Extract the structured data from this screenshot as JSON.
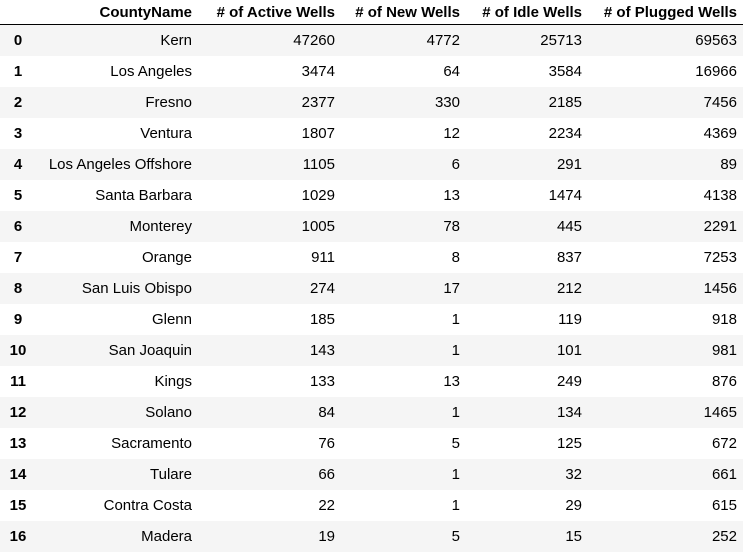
{
  "table": {
    "index_header": "",
    "columns": [
      "CountyName",
      "# of Active Wells",
      "# of New Wells",
      "# of Idle Wells",
      "# of Plugged Wells"
    ],
    "rows": [
      {
        "index": "0",
        "county": "Kern",
        "active": "47260",
        "new": "4772",
        "idle": "25713",
        "plugged": "69563"
      },
      {
        "index": "1",
        "county": "Los Angeles",
        "active": "3474",
        "new": "64",
        "idle": "3584",
        "plugged": "16966"
      },
      {
        "index": "2",
        "county": "Fresno",
        "active": "2377",
        "new": "330",
        "idle": "2185",
        "plugged": "7456"
      },
      {
        "index": "3",
        "county": "Ventura",
        "active": "1807",
        "new": "12",
        "idle": "2234",
        "plugged": "4369"
      },
      {
        "index": "4",
        "county": "Los Angeles Offshore",
        "active": "1105",
        "new": "6",
        "idle": "291",
        "plugged": "89"
      },
      {
        "index": "5",
        "county": "Santa Barbara",
        "active": "1029",
        "new": "13",
        "idle": "1474",
        "plugged": "4138"
      },
      {
        "index": "6",
        "county": "Monterey",
        "active": "1005",
        "new": "78",
        "idle": "445",
        "plugged": "2291"
      },
      {
        "index": "7",
        "county": "Orange",
        "active": "911",
        "new": "8",
        "idle": "837",
        "plugged": "7253"
      },
      {
        "index": "8",
        "county": "San Luis Obispo",
        "active": "274",
        "new": "17",
        "idle": "212",
        "plugged": "1456"
      },
      {
        "index": "9",
        "county": "Glenn",
        "active": "185",
        "new": "1",
        "idle": "119",
        "plugged": "918"
      },
      {
        "index": "10",
        "county": "San Joaquin",
        "active": "143",
        "new": "1",
        "idle": "101",
        "plugged": "981"
      },
      {
        "index": "11",
        "county": "Kings",
        "active": "133",
        "new": "13",
        "idle": "249",
        "plugged": "876"
      },
      {
        "index": "12",
        "county": "Solano",
        "active": "84",
        "new": "1",
        "idle": "134",
        "plugged": "1465"
      },
      {
        "index": "13",
        "county": "Sacramento",
        "active": "76",
        "new": "5",
        "idle": "125",
        "plugged": "672"
      },
      {
        "index": "14",
        "county": "Tulare",
        "active": "66",
        "new": "1",
        "idle": "32",
        "plugged": "661"
      },
      {
        "index": "15",
        "county": "Contra Costa",
        "active": "22",
        "new": "1",
        "idle": "29",
        "plugged": "615"
      },
      {
        "index": "16",
        "county": "Madera",
        "active": "19",
        "new": "5",
        "idle": "15",
        "plugged": "252"
      }
    ]
  }
}
